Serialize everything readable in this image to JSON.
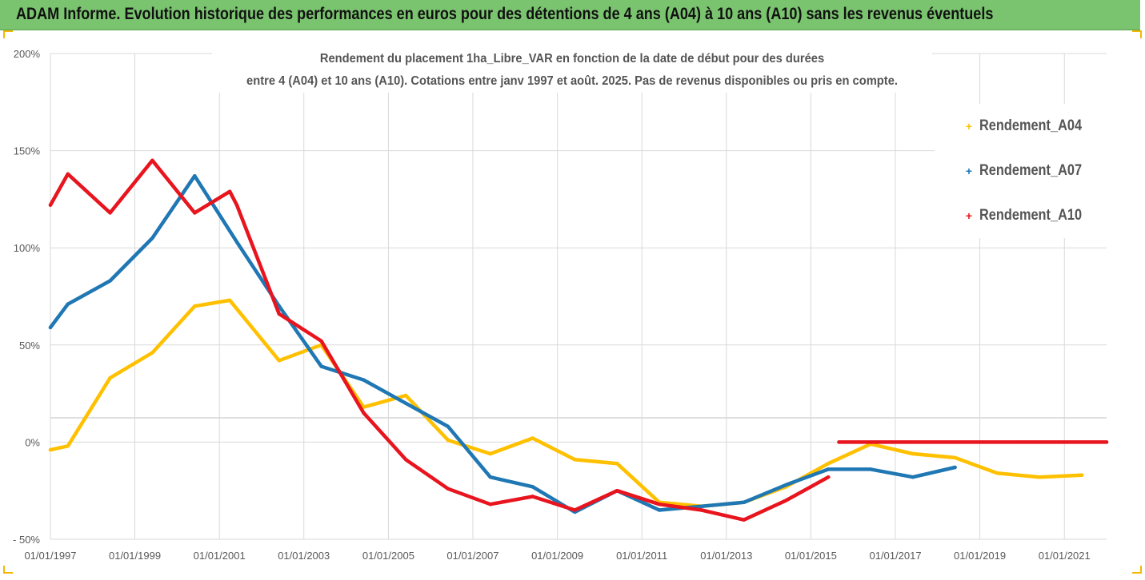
{
  "header": {
    "title": "ADAM Informe. Evolution historique des performances en euros pour des détentions de 4 ans (A04) à 10 ans (A10) sans les revenus éventuels",
    "background": "#7ac46f"
  },
  "chart_data": {
    "type": "line",
    "title_line1": "Rendement du placement 1ha_Libre_VAR en fonction de la date de début pour des durées",
    "title_line2": "entre 4 (A04) et 10 ans (A10). Cotations entre janv 1997 et août. 2025. Pas de revenus disponibles ou pris en compte.",
    "xlabel": "",
    "ylabel": "",
    "x_tick_labels": [
      "01/01/1997",
      "01/01/1999",
      "01/01/2001",
      "01/01/2003",
      "01/01/2005",
      "01/01/2007",
      "01/01/2009",
      "01/01/2011",
      "01/01/2013",
      "01/01/2015",
      "01/01/2017",
      "01/01/2019",
      "01/01/2021"
    ],
    "y_tick_labels": [
      "200%",
      "150%",
      "100%",
      "50%",
      "0%",
      "- 50%"
    ],
    "y_ticks": [
      200,
      150,
      100,
      50,
      0,
      -50
    ],
    "ylim": [
      -50,
      200
    ],
    "xlim": [
      "1997-01-01",
      "2022-01-01"
    ],
    "grid": "horizontal",
    "legend_position": "right",
    "series": [
      {
        "name": "Rendement_A04",
        "color": "#ffc000",
        "points": [
          [
            "1997-01-01",
            -4
          ],
          [
            "1997-06-01",
            -2
          ],
          [
            "1998-06-01",
            33
          ],
          [
            "1999-06-01",
            46
          ],
          [
            "2000-06-01",
            70
          ],
          [
            "2001-04-01",
            73
          ],
          [
            "2002-06-01",
            42
          ],
          [
            "2003-06-01",
            50
          ],
          [
            "2004-06-01",
            18
          ],
          [
            "2005-06-01",
            24
          ],
          [
            "2006-06-01",
            1
          ],
          [
            "2007-06-01",
            -6
          ],
          [
            "2008-06-01",
            2
          ],
          [
            "2009-06-01",
            -9
          ],
          [
            "2010-06-01",
            -11
          ],
          [
            "2011-06-01",
            -31
          ],
          [
            "2012-06-01",
            -33
          ],
          [
            "2013-06-01",
            -31
          ],
          [
            "2014-06-01",
            -23
          ],
          [
            "2015-06-01",
            -11
          ],
          [
            "2016-06-01",
            -1
          ],
          [
            "2017-06-01",
            -6
          ],
          [
            "2018-06-01",
            -8
          ],
          [
            "2019-06-01",
            -16
          ],
          [
            "2020-06-01",
            -18
          ],
          [
            "2021-06-01",
            -17
          ]
        ]
      },
      {
        "name": "Rendement_A07",
        "color": "#1f77b4",
        "points": [
          [
            "1997-01-01",
            59
          ],
          [
            "1997-06-01",
            71
          ],
          [
            "1998-06-01",
            83
          ],
          [
            "1999-06-01",
            105
          ],
          [
            "2000-06-01",
            137
          ],
          [
            "2001-06-01",
            103
          ],
          [
            "2002-06-01",
            70
          ],
          [
            "2003-06-01",
            39
          ],
          [
            "2004-06-01",
            32
          ],
          [
            "2005-06-01",
            20
          ],
          [
            "2006-06-01",
            8
          ],
          [
            "2007-06-01",
            -18
          ],
          [
            "2008-06-01",
            -23
          ],
          [
            "2009-06-01",
            -36
          ],
          [
            "2010-06-01",
            -25
          ],
          [
            "2011-06-01",
            -35
          ],
          [
            "2012-06-01",
            -33
          ],
          [
            "2013-06-01",
            -31
          ],
          [
            "2014-06-01",
            -22
          ],
          [
            "2015-06-01",
            -14
          ],
          [
            "2016-06-01",
            -14
          ],
          [
            "2017-06-01",
            -18
          ],
          [
            "2018-06-01",
            -13
          ]
        ]
      },
      {
        "name": "Rendement_A10",
        "color": "#e8141e",
        "points": [
          [
            "1997-01-01",
            122
          ],
          [
            "1997-06-01",
            138
          ],
          [
            "1998-06-01",
            118
          ],
          [
            "1999-06-01",
            145
          ],
          [
            "2000-06-01",
            118
          ],
          [
            "2001-04-01",
            129
          ],
          [
            "2001-06-01",
            122
          ],
          [
            "2002-06-01",
            66
          ],
          [
            "2003-06-01",
            52
          ],
          [
            "2004-06-01",
            15
          ],
          [
            "2005-06-01",
            -9
          ],
          [
            "2006-06-01",
            -24
          ],
          [
            "2007-06-01",
            -32
          ],
          [
            "2008-06-01",
            -28
          ],
          [
            "2009-06-01",
            -35
          ],
          [
            "2010-06-01",
            -25
          ],
          [
            "2011-06-01",
            -32
          ],
          [
            "2012-06-01",
            -35
          ],
          [
            "2013-06-01",
            -40
          ],
          [
            "2014-06-01",
            -30
          ],
          [
            "2015-06-01",
            -18
          ]
        ],
        "points_after_gap": [
          [
            "2015-09-01",
            0
          ],
          [
            "2022-01-01",
            0
          ]
        ]
      }
    ]
  }
}
